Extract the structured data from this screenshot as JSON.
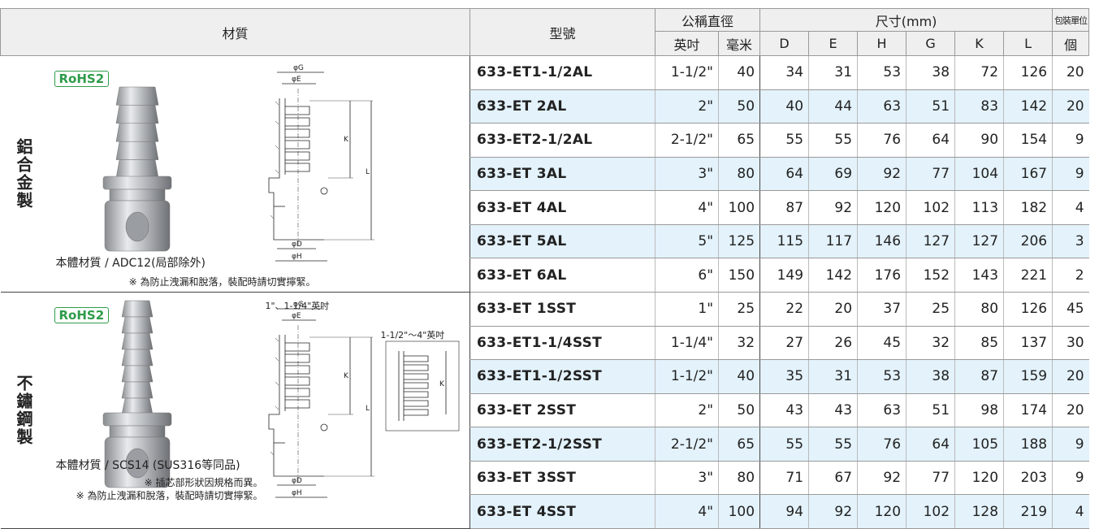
{
  "header": {
    "material": "材質",
    "model": "型號",
    "nominal": "公稱直徑",
    "inch": "英吋",
    "mm": "毫米",
    "dimensions": "尺寸(mm)",
    "dims": [
      "D",
      "E",
      "H",
      "G",
      "K",
      "L"
    ],
    "package": "包裝單位",
    "unit": "個"
  },
  "drawing_labels": [
    "φG",
    "φE",
    "K",
    "L",
    "φD",
    "φH"
  ],
  "groups": [
    {
      "label": "鋁合金製",
      "badge": "RoHS2",
      "material": "本體材質 / ADC12(局部除外)",
      "notes": [
        "※ 為防止洩漏和脫落，裝配時請切實擰緊。"
      ],
      "rows": [
        [
          "633-ET1-1/2AL",
          "1-1/2\"",
          40,
          34,
          31,
          53,
          38,
          72,
          126,
          20
        ],
        [
          "633-ET 2AL",
          "2\"",
          50,
          40,
          44,
          63,
          51,
          83,
          142,
          20
        ],
        [
          "633-ET2-1/2AL",
          "2-1/2\"",
          65,
          55,
          55,
          76,
          64,
          90,
          154,
          9
        ],
        [
          "633-ET 3AL",
          "3\"",
          80,
          64,
          69,
          92,
          77,
          104,
          167,
          9
        ],
        [
          "633-ET 4AL",
          "4\"",
          100,
          87,
          92,
          120,
          102,
          113,
          182,
          4
        ],
        [
          "633-ET 5AL",
          "5\"",
          125,
          115,
          117,
          146,
          127,
          127,
          206,
          3
        ],
        [
          "633-ET 6AL",
          "6\"",
          150,
          149,
          142,
          176,
          152,
          143,
          221,
          2
        ]
      ]
    },
    {
      "label": "不鏽鋼製",
      "badge": "RoHS2",
      "captions": [
        "1\"、1-1/4\"英吋",
        "1-1/2\"～4\"英吋"
      ],
      "material": "本體材質 / SCS14 (SUS316等同品)",
      "notes": [
        "※ 插芯部形狀因規格而異。",
        "※ 為防止洩漏和脫落，裝配時請切實擰緊。"
      ],
      "rows": [
        [
          "633-ET 1SST",
          "1\"",
          25,
          22,
          20,
          37,
          25,
          80,
          126,
          45
        ],
        [
          "633-ET1-1/4SST",
          "1-1/4\"",
          32,
          27,
          26,
          45,
          32,
          85,
          137,
          30
        ],
        [
          "633-ET1-1/2SST",
          "1-1/2\"",
          40,
          35,
          31,
          53,
          38,
          87,
          159,
          20
        ],
        [
          "633-ET 2SST",
          "2\"",
          50,
          43,
          43,
          63,
          51,
          98,
          174,
          20
        ],
        [
          "633-ET2-1/2SST",
          "2-1/2\"",
          65,
          55,
          55,
          76,
          64,
          105,
          188,
          9
        ],
        [
          "633-ET 3SST",
          "3\"",
          80,
          71,
          67,
          92,
          77,
          120,
          203,
          9
        ],
        [
          "633-ET 4SST",
          "4\"",
          100,
          94,
          92,
          120,
          102,
          128,
          219,
          4
        ]
      ]
    }
  ]
}
